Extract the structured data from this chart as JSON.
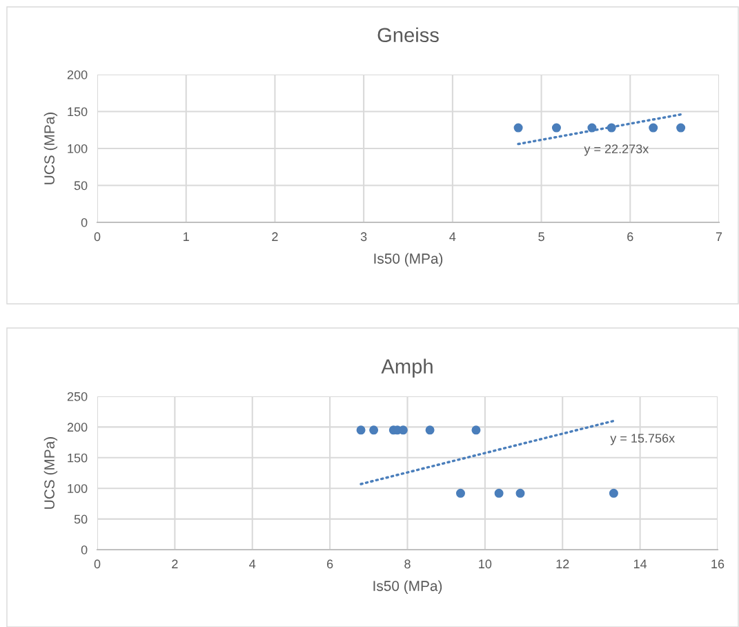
{
  "chart_data": [
    {
      "type": "scatter",
      "title": "Gneiss",
      "xlabel": "Is50 (MPa)",
      "ylabel": "UCS (MPa)",
      "xlim": [
        0,
        7
      ],
      "xticks": [
        0,
        1,
        2,
        3,
        4,
        5,
        6,
        7
      ],
      "ylim": [
        0,
        200
      ],
      "yticks": [
        0,
        50,
        100,
        150,
        200
      ],
      "grid": true,
      "marker": "circle",
      "legend": false,
      "series": [
        {
          "color": "#4a7ebb",
          "x": [
            4.74,
            5.17,
            5.57,
            5.79,
            6.26,
            6.57
          ],
          "values": [
            128,
            128,
            128,
            128,
            128,
            128
          ]
        },
        {
          "type": "line",
          "line_style": "dotted",
          "marker": "none",
          "color": "#4a7ebb",
          "x": [
            4.74,
            6.57
          ],
          "values": [
            106,
            146
          ]
        }
      ],
      "annotations": [
        "y = 22.273x"
      ]
    },
    {
      "type": "scatter",
      "title": "Amph",
      "xlabel": "Is50 (MPa)",
      "ylabel": "UCS (MPa)",
      "xlim": [
        0,
        16
      ],
      "xticks": [
        0,
        2,
        4,
        6,
        8,
        10,
        12,
        14,
        16
      ],
      "ylim": [
        0,
        250
      ],
      "yticks": [
        0,
        50,
        100,
        150,
        200,
        250
      ],
      "grid": true,
      "marker": "circle",
      "legend": false,
      "series": [
        {
          "color": "#4a7ebb",
          "x": [
            6.8,
            7.13,
            7.64,
            7.74,
            7.89,
            8.58,
            9.77,
            9.37,
            10.36,
            10.91,
            13.32
          ],
          "values": [
            195,
            195,
            195,
            195,
            195,
            195,
            195,
            92,
            92,
            92,
            92
          ]
        },
        {
          "type": "line",
          "line_style": "dotted",
          "marker": "none",
          "color": "#4a7ebb",
          "x": [
            6.8,
            13.32
          ],
          "values": [
            107,
            210
          ]
        }
      ],
      "annotations": [
        "y = 15.756x"
      ]
    }
  ]
}
